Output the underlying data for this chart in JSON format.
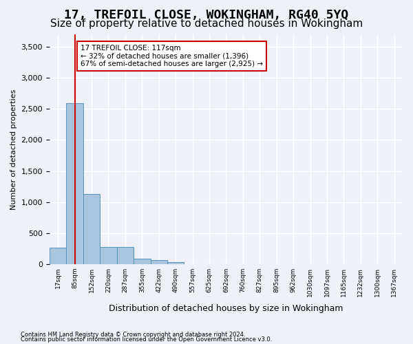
{
  "title": "17, TREFOIL CLOSE, WOKINGHAM, RG40 5YQ",
  "subtitle": "Size of property relative to detached houses in Wokingham",
  "xlabel": "Distribution of detached houses by size in Wokingham",
  "ylabel": "Number of detached properties",
  "footnote1": "Contains HM Land Registry data © Crown copyright and database right 2024.",
  "footnote2": "Contains public sector information licensed under the Open Government Licence v3.0.",
  "bin_labels": [
    "17sqm",
    "85sqm",
    "152sqm",
    "220sqm",
    "287sqm",
    "355sqm",
    "422sqm",
    "490sqm",
    "557sqm",
    "625sqm",
    "692sqm",
    "760sqm",
    "827sqm",
    "895sqm",
    "962sqm",
    "1030sqm",
    "1097sqm",
    "1165sqm",
    "1232sqm",
    "1300sqm",
    "1367sqm"
  ],
  "bar_values": [
    270,
    2590,
    1130,
    280,
    280,
    90,
    60,
    35,
    0,
    0,
    0,
    0,
    0,
    0,
    0,
    0,
    0,
    0,
    0,
    0,
    0
  ],
  "bar_color": "#aac4de",
  "bar_edge_color": "#5591b8",
  "vline_x": 1,
  "annotation_title": "17 TREFOIL CLOSE: 117sqm",
  "annotation_line1": "← 32% of detached houses are smaller (1,396)",
  "annotation_line2": "67% of semi-detached houses are larger (2,925) →",
  "annotation_box_color": "#ffffff",
  "annotation_box_edge": "#cc0000",
  "vline_color": "#cc0000",
  "ylim": [
    0,
    3700
  ],
  "yticks": [
    0,
    500,
    1000,
    1500,
    2000,
    2500,
    3000,
    3500
  ],
  "background_color": "#eef2f8",
  "grid_color": "#ffffff",
  "title_fontsize": 13,
  "subtitle_fontsize": 11
}
